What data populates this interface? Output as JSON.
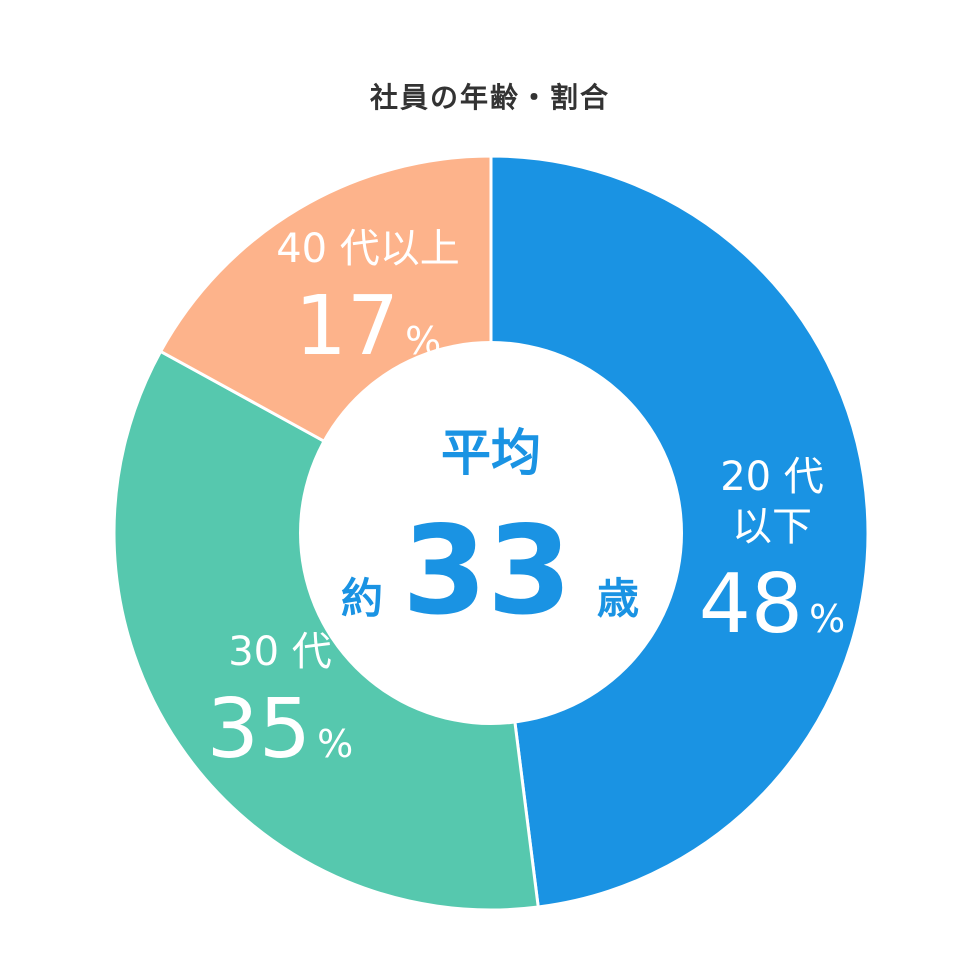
{
  "chart_data": {
    "type": "pie",
    "title": "社員の年齢・割合",
    "categories": [
      "20代以下",
      "30代",
      "40代以上"
    ],
    "values": [
      48,
      35,
      17
    ],
    "unit": "%",
    "colors": [
      "#1a93e3",
      "#56c8ae",
      "#fdb38b"
    ],
    "labels": [
      {
        "lines": [
          "20 代",
          "以下"
        ],
        "value": "48",
        "suffix": "%"
      },
      {
        "lines": [
          "30 代"
        ],
        "value": "35",
        "suffix": "%"
      },
      {
        "lines": [
          "40 代以上"
        ],
        "value": "17",
        "suffix": "%"
      }
    ],
    "center": {
      "line1": "平均",
      "prefix": "約",
      "value": "33",
      "suffix": "歳"
    }
  }
}
